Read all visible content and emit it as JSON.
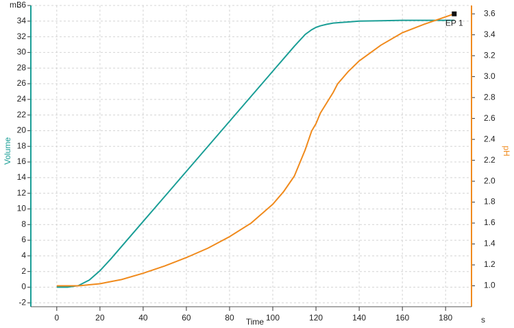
{
  "chart_data": {
    "type": "line",
    "x_label": "Time",
    "x_unit": "s",
    "y_label": "Volume",
    "y_unit": "mL",
    "y2_label": "pH",
    "x": [
      0,
      5,
      10,
      15,
      20,
      25,
      30,
      40,
      50,
      60,
      70,
      80,
      90,
      100,
      105,
      110,
      115,
      118,
      120,
      122,
      125,
      128,
      130,
      135,
      140,
      150,
      160,
      170,
      184
    ],
    "series": [
      {
        "name": "Volume",
        "color": "#1a9e96",
        "axis": "y",
        "values": [
          0,
          0,
          0.2,
          0.9,
          2.1,
          3.6,
          5.2,
          8.4,
          11.6,
          14.8,
          18.0,
          21.2,
          24.4,
          27.6,
          29.2,
          30.8,
          32.3,
          32.9,
          33.2,
          33.4,
          33.6,
          33.75,
          33.8,
          33.9,
          34,
          34.05,
          34.1,
          34.1,
          34.1
        ]
      },
      {
        "name": "pH",
        "color": "#f08a1c",
        "axis": "y2",
        "values": [
          1.0,
          1.0,
          1.0,
          1.01,
          1.02,
          1.04,
          1.06,
          1.12,
          1.19,
          1.27,
          1.36,
          1.47,
          1.6,
          1.78,
          1.9,
          2.05,
          2.3,
          2.48,
          2.55,
          2.65,
          2.75,
          2.85,
          2.93,
          3.05,
          3.15,
          3.3,
          3.42,
          3.5,
          3.6
        ]
      }
    ],
    "endpoint": {
      "label": "EP 1",
      "x": 184,
      "y": 3.6
    },
    "xlim": [
      -12,
      192
    ],
    "xticks": [
      0,
      20,
      40,
      60,
      80,
      100,
      120,
      140,
      160,
      180
    ],
    "ylim": [
      -2.5,
      36
    ],
    "yticks": [
      -2,
      0,
      2,
      4,
      6,
      8,
      10,
      12,
      14,
      16,
      18,
      20,
      22,
      24,
      26,
      28,
      30,
      32,
      34,
      36
    ],
    "y2lim": [
      0.8,
      3.68
    ],
    "y2ticks": [
      {
        "value": 1.0,
        "label": "1.0"
      },
      1.2,
      1.4,
      1.6,
      1.8,
      {
        "value": 2.0,
        "label": "2.0"
      },
      2.2,
      2.4,
      2.6,
      2.8,
      {
        "value": 3.0,
        "label": "3.0"
      },
      3.2,
      3.4,
      3.6
    ],
    "grid": true
  }
}
